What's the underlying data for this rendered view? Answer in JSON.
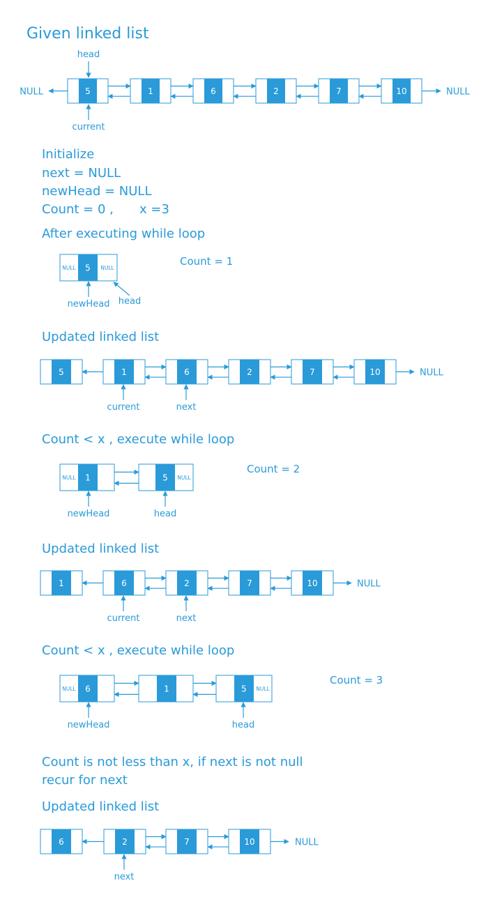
{
  "colors": {
    "accent": "#2a9ad8",
    "node_fill": "#2a9ad8",
    "node_text": "#ffffff",
    "background": "#ffffff"
  },
  "title": "Given linked list",
  "given": {
    "nodes": [
      "5",
      "1",
      "6",
      "2",
      "7",
      "10"
    ],
    "left_null": "NULL",
    "right_null": "NULL",
    "head_label": "head",
    "current_label": "current"
  },
  "init": {
    "heading": "Initialize",
    "next": "next = NULL",
    "new_head": "newHead = NULL",
    "count_prefix": "Count = 0  ,",
    "x_value": "x =3"
  },
  "step1": {
    "heading": "After executing while loop",
    "null_left": "NULL",
    "node": "5",
    "null_right": "NULL",
    "new_head_label": "newHead",
    "head_label": "head",
    "count": "Count = 1"
  },
  "upd1": {
    "heading": "Updated linked list",
    "nodes": [
      "5",
      "1",
      "6",
      "2",
      "7",
      "10"
    ],
    "null_label": "NULL",
    "current_label": "current",
    "next_label": "next"
  },
  "step2": {
    "heading": "Count < x  ,  execute while loop",
    "null_left": "NULL",
    "nodes": [
      "1",
      "5"
    ],
    "null_right": "NULL",
    "new_head_label": "newHead",
    "head_label": "head",
    "count": "Count = 2"
  },
  "upd2": {
    "heading": "Updated linked list",
    "nodes": [
      "1",
      "6",
      "2",
      "7",
      "10"
    ],
    "null_label": "NULL",
    "current_label": "current",
    "next_label": "next"
  },
  "step3": {
    "heading": "Count < x  ,  execute while loop",
    "null_left": "NULL",
    "nodes": [
      "6",
      "1",
      "5"
    ],
    "null_right": "NULL",
    "new_head_label": "newHead",
    "head_label": "head",
    "count": "Count = 3"
  },
  "final_note": {
    "line1": "Count is not less than x, if next is not null",
    "line2": "recur for next"
  },
  "upd3": {
    "heading": "Updated linked list",
    "nodes": [
      "6",
      "2",
      "7",
      "10"
    ],
    "null_label": "NULL",
    "next_label": "next"
  }
}
